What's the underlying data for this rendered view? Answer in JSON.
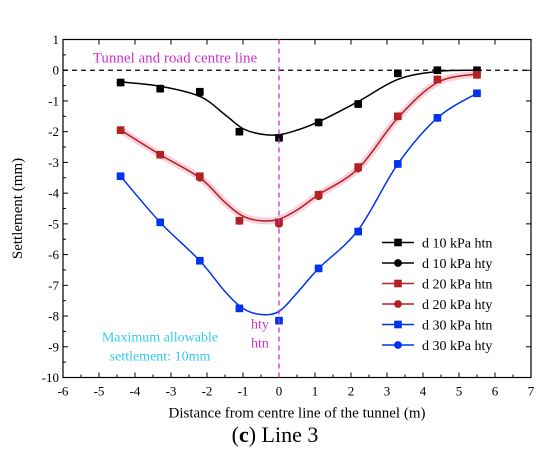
{
  "chart_data": {
    "type": "line",
    "title": "",
    "xlabel": "Distance from centre line of the tunnel (m)",
    "ylabel": "Settlement (mm)",
    "xlim": [
      -6,
      7
    ],
    "ylim": [
      -10,
      1
    ],
    "xticks": [
      -6,
      -5,
      -4,
      -3,
      -2,
      -1,
      0,
      1,
      2,
      3,
      4,
      5,
      6,
      7
    ],
    "yticks": [
      -10,
      -9,
      -8,
      -7,
      -6,
      -5,
      -4,
      -3,
      -2,
      -1,
      0,
      1
    ],
    "grid": false,
    "legend_position": "right",
    "series": [
      {
        "name": "d 10 kPa htn",
        "kind": "measured",
        "marker": "square",
        "color": "#000000",
        "x": [
          -4.4,
          -3.3,
          -2.2,
          -1.1,
          0,
          1.1,
          2.2,
          3.3,
          4.4,
          5.5
        ],
        "y": [
          -0.4,
          -0.6,
          -0.7,
          -2.0,
          -2.2,
          -1.7,
          -1.1,
          -0.1,
          0.0,
          0.0
        ]
      },
      {
        "name": "d 10 kPa hty",
        "kind": "fitted",
        "marker": "circle",
        "color": "#000000",
        "x": [
          -4.4,
          -3.3,
          -2.2,
          -1.1,
          0,
          1.1,
          2.2,
          3.3,
          4.4,
          5.5
        ],
        "y": [
          -0.4,
          -0.6,
          -0.75,
          -2.0,
          -2.2,
          -1.7,
          -1.1,
          -0.1,
          0.0,
          0.0
        ]
      },
      {
        "name": "d 20 kPa htn",
        "kind": "measured",
        "marker": "square",
        "color": "#b22222",
        "x": [
          -4.4,
          -3.3,
          -2.2,
          -1.1,
          0,
          1.1,
          2.2,
          3.3,
          4.4,
          5.5
        ],
        "y": [
          -1.95,
          -2.75,
          -3.45,
          -4.9,
          -4.95,
          -4.05,
          -3.15,
          -1.5,
          -0.3,
          -0.15
        ]
      },
      {
        "name": "d 20 kPa hty",
        "kind": "fitted",
        "marker": "circle",
        "color": "#b22222",
        "x": [
          -4.4,
          -3.3,
          -2.2,
          -1.1,
          0,
          1.1,
          2.2,
          3.3,
          4.4,
          5.5
        ],
        "y": [
          -1.95,
          -2.75,
          -3.5,
          -4.9,
          -5.0,
          -4.1,
          -3.2,
          -1.5,
          -0.3,
          -0.15
        ]
      },
      {
        "name": "d 30 kPa htn",
        "kind": "measured",
        "marker": "square",
        "color": "#0033ee",
        "x": [
          -4.4,
          -3.3,
          -2.2,
          -1.1,
          0,
          1.1,
          2.2,
          3.3,
          4.4,
          5.5
        ],
        "y": [
          -3.45,
          -4.95,
          -6.2,
          -7.75,
          -8.15,
          -6.45,
          -5.25,
          -3.05,
          -1.55,
          -0.75
        ]
      },
      {
        "name": "d 30 kPa hty",
        "kind": "fitted",
        "marker": "circle",
        "color": "#0033ee",
        "x": [
          -4.4,
          -3.3,
          -2.2,
          -1.1,
          0,
          1.1,
          2.2,
          3.3,
          4.4,
          5.5
        ],
        "y": [
          -3.45,
          -4.95,
          -6.2,
          -7.75,
          -8.15,
          -6.45,
          -5.25,
          -3.05,
          -1.55,
          -0.75
        ]
      }
    ],
    "fit_curves": [
      {
        "color": "#000000",
        "points": [
          [
            -4.4,
            -0.38
          ],
          [
            -3.3,
            -0.52
          ],
          [
            -2.2,
            -0.85
          ],
          [
            -1.5,
            -1.45
          ],
          [
            -1.0,
            -1.9
          ],
          [
            -0.5,
            -2.08
          ],
          [
            0,
            -2.1
          ],
          [
            0.5,
            -1.95
          ],
          [
            1.1,
            -1.68
          ],
          [
            2.2,
            -1.02
          ],
          [
            3.3,
            -0.3
          ],
          [
            4.4,
            -0.04
          ],
          [
            5.5,
            0.0
          ]
        ]
      },
      {
        "color": "#b22222",
        "points": [
          [
            -4.4,
            -1.95
          ],
          [
            -3.3,
            -2.75
          ],
          [
            -2.2,
            -3.5
          ],
          [
            -1.5,
            -4.3
          ],
          [
            -1.0,
            -4.75
          ],
          [
            -0.5,
            -4.9
          ],
          [
            0,
            -4.85
          ],
          [
            0.5,
            -4.55
          ],
          [
            1.1,
            -4.05
          ],
          [
            2.2,
            -3.2
          ],
          [
            3.3,
            -1.55
          ],
          [
            4.4,
            -0.4
          ],
          [
            5.5,
            -0.12
          ]
        ]
      },
      {
        "color": "#0033ee",
        "points": [
          [
            -4.4,
            -3.45
          ],
          [
            -3.3,
            -4.95
          ],
          [
            -2.2,
            -6.2
          ],
          [
            -1.5,
            -7.2
          ],
          [
            -1.0,
            -7.75
          ],
          [
            -0.5,
            -7.95
          ],
          [
            0,
            -7.85
          ],
          [
            0.5,
            -7.25
          ],
          [
            1.1,
            -6.45
          ],
          [
            2.2,
            -5.2
          ],
          [
            3.3,
            -3.05
          ],
          [
            4.4,
            -1.55
          ],
          [
            5.5,
            -0.75
          ]
        ]
      }
    ],
    "annotations": {
      "centre_line": "Tunnel and road centre line",
      "hty_label": "hty",
      "htn_label": "htn",
      "allowable_line1": "Maximum allowable",
      "allowable_line2": "settlement: 10mm"
    },
    "colors": {
      "centre_line": "#cc33cc",
      "allowable_text": "#33ccee",
      "fit_highlight": "#f7c6d4"
    }
  },
  "caption": {
    "letter": "c",
    "rest": " Line 3"
  }
}
